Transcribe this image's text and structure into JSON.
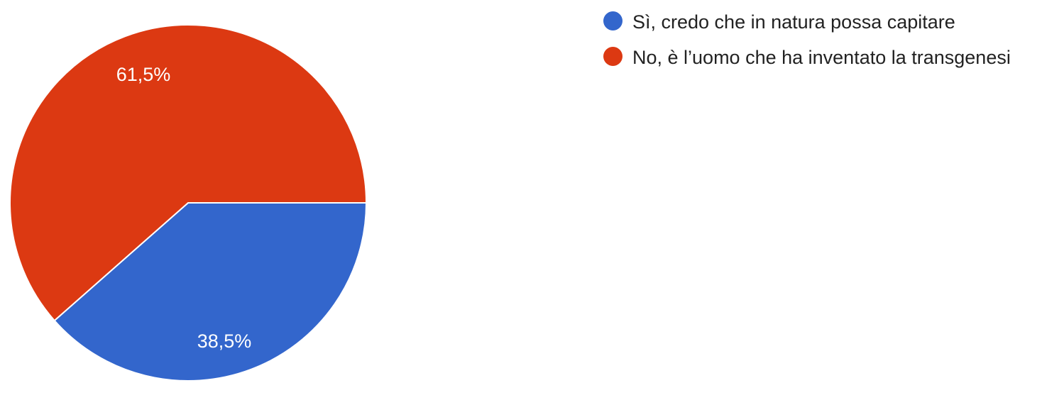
{
  "chart_data": {
    "type": "pie",
    "title": "",
    "series": [
      {
        "values": [
          38.5,
          61.5
        ]
      }
    ],
    "categories": [
      "Sì, credo che in natura possa capitare",
      "No, è l’uomo che ha inventato la transgenesi"
    ],
    "values": [
      38.5,
      61.5
    ],
    "labels": [
      "38,5%",
      "61,5%"
    ],
    "colors": [
      "#3366CC",
      "#DC3912"
    ],
    "legend_position": "right"
  }
}
